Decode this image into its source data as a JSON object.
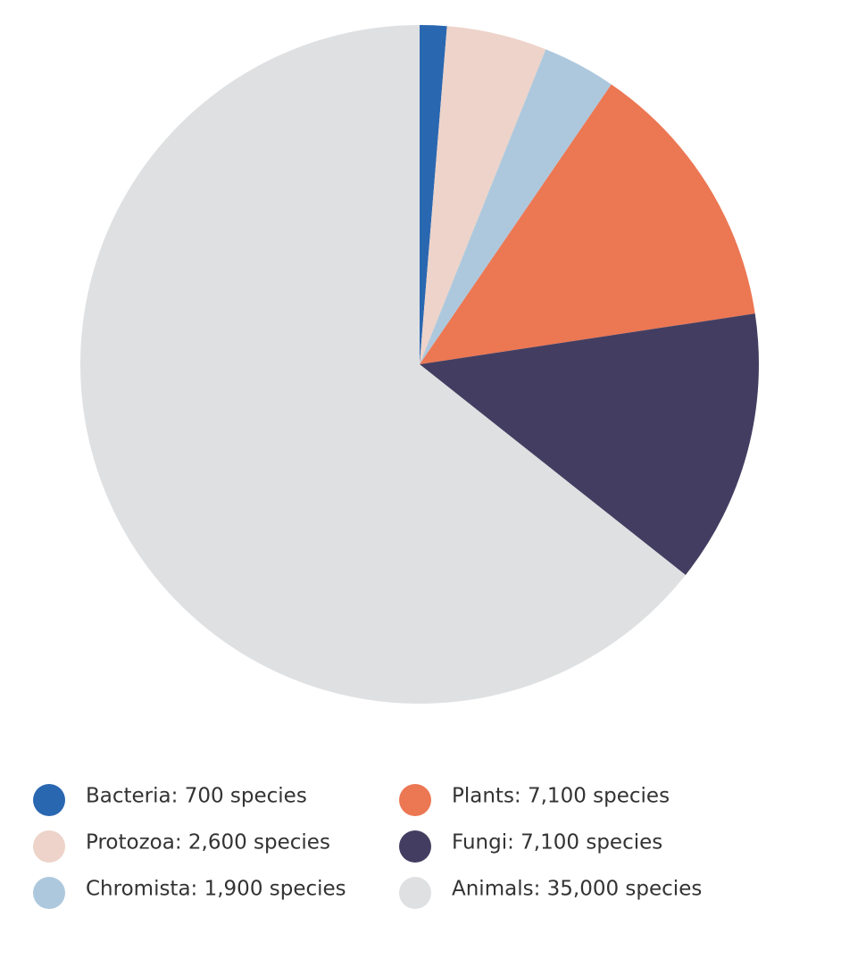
{
  "chart_data": {
    "type": "pie",
    "categories": [
      "Bacteria: 700 species",
      "Protozoa: 2,600 species",
      "Chromista: 1,900 species",
      "Plants: 7,100 species",
      "Fungi: 7,100 species",
      "Animals: 35,000 species"
    ],
    "values": [
      700,
      2600,
      1900,
      7100,
      7100,
      35000
    ],
    "colors": [
      "#2a67b1",
      "#edd3c9",
      "#adc8dd",
      "#ec7753",
      "#433e61",
      "#dfe0e2"
    ],
    "legend": "bottom"
  }
}
